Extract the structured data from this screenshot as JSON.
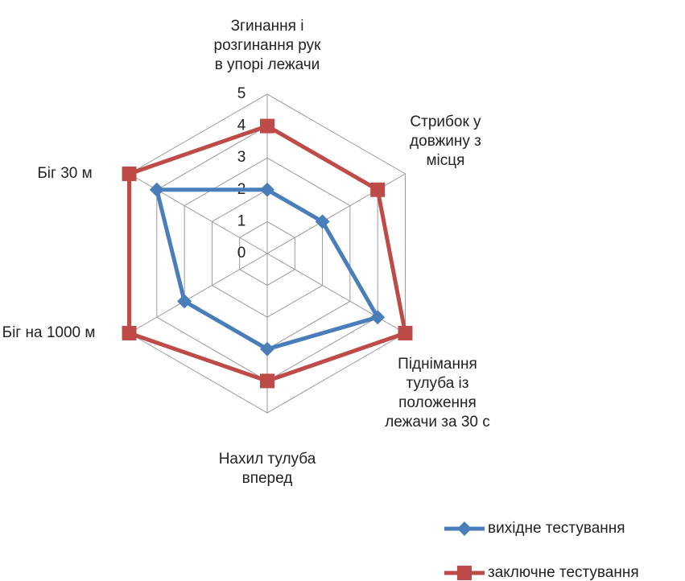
{
  "chart_data": {
    "type": "radar",
    "categories": [
      "Згинання і\nрозгинання рук\nв упорі лежачи",
      "Стрибок у\nдовжину з\nмісця",
      "Піднімання\nтулуба із\nположення\nлежачи за 30 с",
      "Нахил тулуба\nвперед",
      "Біг на 1000 м",
      "Біг 30 м"
    ],
    "series": [
      {
        "name": "вихідне тестування",
        "color": "#4a7ebb",
        "marker": "diamond",
        "values": [
          2,
          2,
          4,
          3,
          3,
          4
        ]
      },
      {
        "name": "заключне тестування",
        "color": "#be4b48",
        "marker": "square",
        "values": [
          4,
          4,
          5,
          4,
          5,
          5
        ]
      }
    ],
    "ylim": [
      0,
      5
    ],
    "yticks": [
      0,
      1,
      2,
      3,
      4,
      5
    ],
    "grid": true,
    "legend": "bottom-right"
  }
}
